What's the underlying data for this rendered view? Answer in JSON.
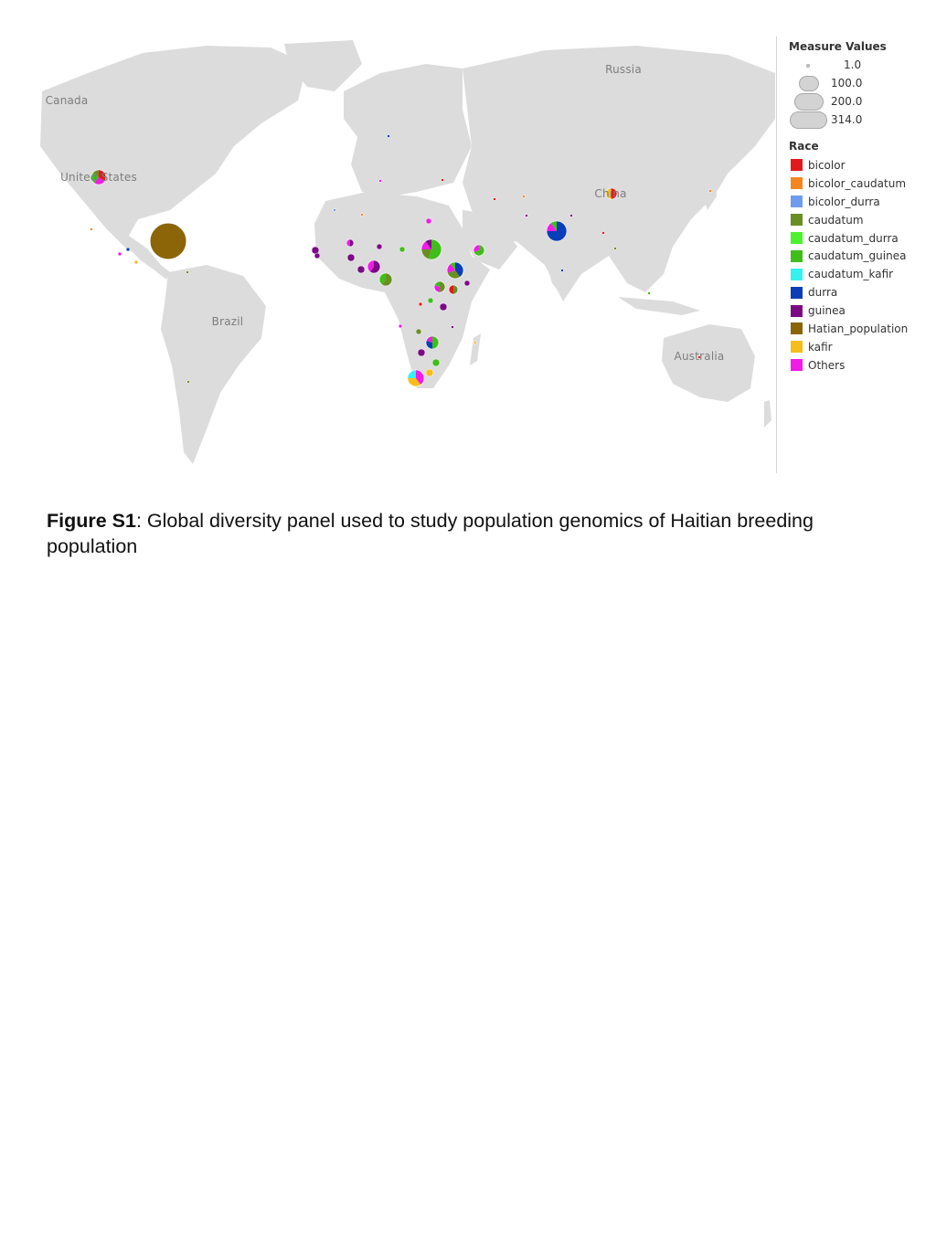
{
  "map": {
    "labels": [
      {
        "name": "label-canada",
        "text": "Canada"
      },
      {
        "name": "label-russia",
        "text": "Russia"
      },
      {
        "name": "label-united-states",
        "text": "United States"
      },
      {
        "name": "label-china",
        "text": "China"
      },
      {
        "name": "label-brazil",
        "text": "Brazil"
      },
      {
        "name": "label-australia",
        "text": "Australia"
      }
    ],
    "land_color": "#dcdcdc",
    "water_color": "#ffffff",
    "border_color": "#ffffff"
  },
  "legend": {
    "size_title": "Measure Values",
    "sizes": [
      {
        "label": "1.0",
        "value": 1.0
      },
      {
        "label": "100.0",
        "value": 100.0
      },
      {
        "label": "200.0",
        "value": 200.0
      },
      {
        "label": "314.0",
        "value": 314.0
      }
    ],
    "race_title": "Race",
    "races": [
      {
        "label": "bicolor",
        "color": "#e31a1c"
      },
      {
        "label": "bicolor_caudatum",
        "color": "#f5861f"
      },
      {
        "label": "bicolor_durra",
        "color": "#6f9cf0"
      },
      {
        "label": "caudatum",
        "color": "#6b8e23"
      },
      {
        "label": "caudatum_durra",
        "color": "#4cf22a"
      },
      {
        "label": "caudatum_guinea",
        "color": "#3fbe1a"
      },
      {
        "label": "caudatum_kafir",
        "color": "#33f3f0"
      },
      {
        "label": "durra",
        "color": "#0b3fb8"
      },
      {
        "label": "guinea",
        "color": "#7c0a85"
      },
      {
        "label": "Hatian_population",
        "color": "#8b6508"
      },
      {
        "label": "kafir",
        "color": "#f6bd1b"
      },
      {
        "label": "Others",
        "color": "#f21be8"
      }
    ]
  },
  "caption": {
    "label": "Figure S1",
    "text": ": Global diversity panel used to study population genomics of Haitian breeding population"
  }
}
